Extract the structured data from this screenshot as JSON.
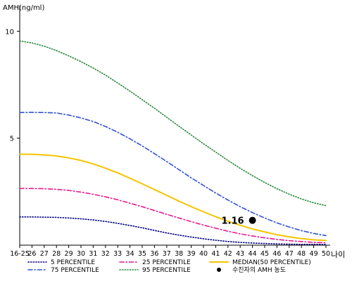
{
  "chart_data": {
    "type": "line",
    "ylabel": "AMH(ng/ml)",
    "xlabel": "나이",
    "x_ticks": [
      "16-25",
      "26",
      "27",
      "28",
      "29",
      "30",
      "31",
      "32",
      "33",
      "34",
      "35",
      "36",
      "37",
      "38",
      "39",
      "40",
      "41",
      "42",
      "43",
      "44",
      "45",
      "46",
      "47",
      "48",
      "49",
      "50"
    ],
    "y_ticks": [
      "5",
      "10"
    ],
    "ylim": [
      0,
      11
    ],
    "grid": false,
    "series": [
      {
        "name": "5 PERCENTILE",
        "color": "#000080",
        "dash": "dotted",
        "values": [
          1.32,
          1.32,
          1.31,
          1.3,
          1.27,
          1.23,
          1.18,
          1.11,
          1.02,
          0.92,
          0.81,
          0.69,
          0.57,
          0.47,
          0.38,
          0.3,
          0.23,
          0.17,
          0.13,
          0.1,
          0.08,
          0.06,
          0.05,
          0.04,
          0.04,
          0.03
        ]
      },
      {
        "name": "25 PERCENTILE",
        "color": "#e6198c",
        "dash": "dashdot",
        "values": [
          2.65,
          2.65,
          2.64,
          2.61,
          2.56,
          2.48,
          2.38,
          2.26,
          2.12,
          1.96,
          1.8,
          1.62,
          1.44,
          1.27,
          1.1,
          0.94,
          0.79,
          0.65,
          0.53,
          0.43,
          0.34,
          0.27,
          0.21,
          0.17,
          0.13,
          0.11
        ]
      },
      {
        "name": "MEDIAN(50 PERCENTILE)",
        "color": "#f5c400",
        "dash": "solid",
        "values": [
          4.25,
          4.25,
          4.22,
          4.17,
          4.08,
          3.96,
          3.8,
          3.6,
          3.38,
          3.13,
          2.87,
          2.6,
          2.33,
          2.06,
          1.8,
          1.56,
          1.33,
          1.12,
          0.93,
          0.76,
          0.62,
          0.49,
          0.39,
          0.31,
          0.25,
          0.22
        ]
      },
      {
        "name": "75 PERCENTILE",
        "color": "#3050d0",
        "dash": "dashdot",
        "values": [
          6.2,
          6.21,
          6.2,
          6.18,
          6.08,
          5.95,
          5.78,
          5.55,
          5.28,
          4.97,
          4.64,
          4.28,
          3.91,
          3.53,
          3.15,
          2.79,
          2.44,
          2.11,
          1.8,
          1.52,
          1.27,
          1.04,
          0.85,
          0.68,
          0.55,
          0.45
        ]
      },
      {
        "name": "95 PERCENTILE",
        "color": "#2a8a3a",
        "dash": "dotted",
        "values": [
          9.55,
          9.45,
          9.3,
          9.1,
          8.85,
          8.58,
          8.28,
          7.95,
          7.58,
          7.2,
          6.8,
          6.4,
          5.98,
          5.56,
          5.15,
          4.74,
          4.35,
          3.96,
          3.59,
          3.25,
          2.93,
          2.64,
          2.38,
          2.16,
          1.98,
          1.85
        ]
      }
    ],
    "marker": {
      "name": "수진자의 AMH 농도",
      "x": "44",
      "value": 1.16,
      "label": "1.16",
      "color": "#000000"
    },
    "legend_position": "bottom"
  }
}
